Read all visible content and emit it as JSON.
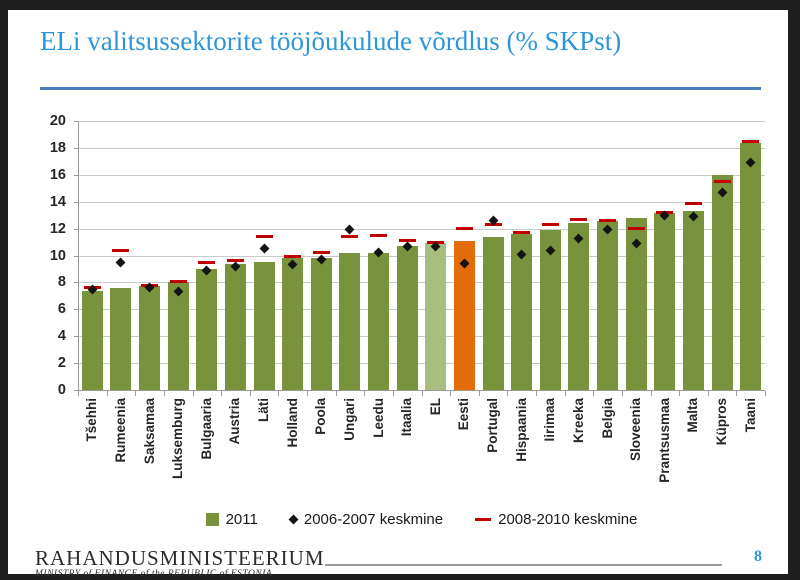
{
  "slide": {
    "title": "ELi valitsussektorite tööjõukulude võrdlus (% SKPst)",
    "page_number": "8"
  },
  "footer": {
    "org_name": "RAHANDUSMINISTEERIUM",
    "org_subtitle": "MINISTRY of FINANCE of the REPUBLIC of ESTONIA"
  },
  "chart_data": {
    "type": "bar",
    "title": "ELi valitsussektorite tööjõukulude võrdlus (% SKPst)",
    "xlabel": "",
    "ylabel": "",
    "ylim": [
      0,
      20
    ],
    "ytick_step": 2,
    "yticks": [
      0,
      2,
      4,
      6,
      8,
      10,
      12,
      14,
      16,
      18,
      20
    ],
    "grid": true,
    "legend_position": "bottom",
    "categories": [
      "Tšehhi",
      "Rumeenia",
      "Saksamaa",
      "Luksemburg",
      "Bulgaaria",
      "Austria",
      "Läti",
      "Holland",
      "Poola",
      "Ungari",
      "Leedu",
      "Itaalia",
      "EL",
      "Eesti",
      "Portugal",
      "Hispaania",
      "Iirimaa",
      "Kreeka",
      "Belgia",
      "Sloveenia",
      "Prantsusmaa",
      "Malta",
      "Küpros",
      "Taani"
    ],
    "series": [
      {
        "name": "2011",
        "type": "bar",
        "values": [
          7.4,
          7.6,
          7.7,
          8.0,
          9.0,
          9.4,
          9.5,
          9.8,
          9.8,
          10.2,
          10.2,
          10.7,
          10.9,
          11.1,
          11.4,
          11.6,
          11.9,
          12.4,
          12.6,
          12.8,
          13.2,
          13.3,
          16.0,
          18.4
        ]
      },
      {
        "name": "2006-2007 keskmine",
        "type": "scatter-diamond",
        "values": [
          7.5,
          9.5,
          7.6,
          7.3,
          8.9,
          9.2,
          10.5,
          9.3,
          9.7,
          11.9,
          10.2,
          10.7,
          10.7,
          9.4,
          12.6,
          10.1,
          10.4,
          11.3,
          11.9,
          10.9,
          13.0,
          12.9,
          14.7,
          16.9
        ]
      },
      {
        "name": "2008-2010 keskmine",
        "type": "dash",
        "values": [
          7.6,
          10.4,
          7.8,
          8.1,
          9.5,
          9.6,
          11.4,
          9.9,
          10.2,
          11.4,
          11.5,
          11.1,
          11.0,
          12.0,
          12.3,
          11.7,
          12.3,
          12.7,
          12.6,
          12.0,
          13.2,
          13.9,
          15.5,
          18.5
        ]
      }
    ],
    "colors": {
      "bar_default": "#78933c",
      "bar_el_average": "#a9bd7e",
      "bar_estonia_highlight": "#e36c09",
      "diamond": "#141414",
      "dash": "#c00000",
      "gridline": "#c9c9c9",
      "axis": "#9b9b9b",
      "title": "#2e96d8",
      "title_rule": "#4d7ebc"
    },
    "bar_color_overrides": {
      "12": "#a9bd7e",
      "13": "#e36c09"
    }
  }
}
